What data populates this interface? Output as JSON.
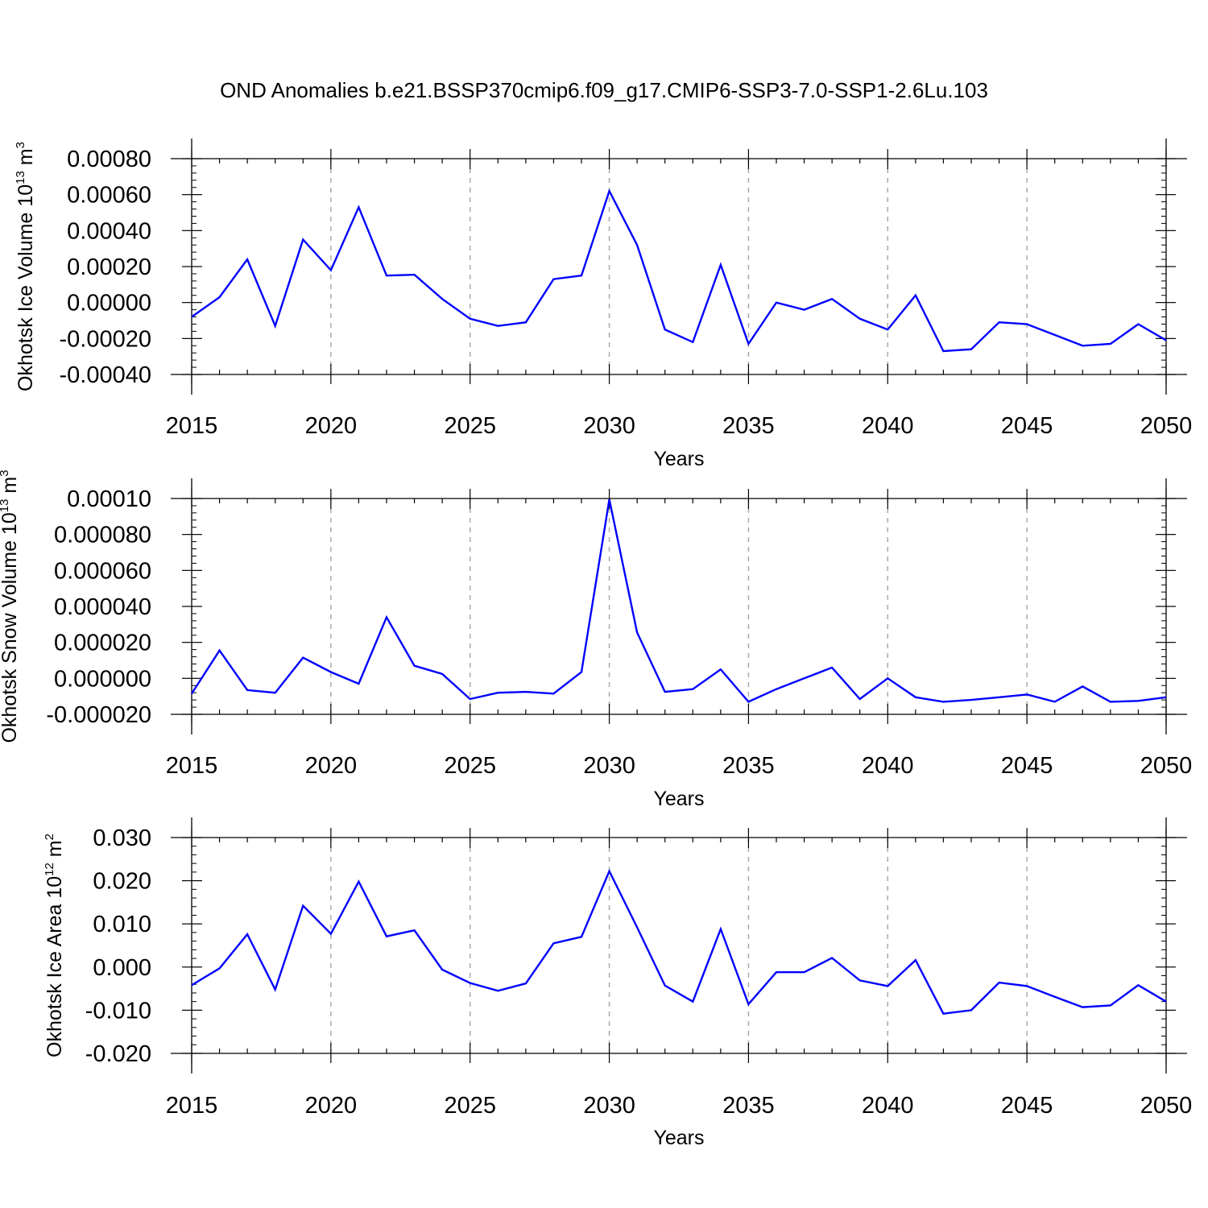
{
  "title": "OND Anomalies b.e21.BSSP370cmip6.f09_g17.CMIP6-SSP3-7.0-SSP1-2.6Lu.103",
  "colors": {
    "line": "#0000ff",
    "axis": "#000000",
    "grid": "#aaaaaa"
  },
  "chart_data": [
    {
      "type": "line",
      "xlabel": "Years",
      "ylabel_text": "Okhotsk Ice Volume 10",
      "ylabel_exp": "13",
      "ylabel_unit": " m",
      "ylabel_unit_exp": "3",
      "xlim": [
        2015,
        2050
      ],
      "ylim": [
        -0.0004,
        0.0008
      ],
      "yticks": [
        -0.0004,
        -0.0002,
        0.0,
        0.0002,
        0.0004,
        0.0006,
        0.0008
      ],
      "ytick_labels": [
        "-0.00040",
        "-0.00020",
        "0.00000",
        "0.00020",
        "0.00040",
        "0.00060",
        "0.00080"
      ],
      "xticks": [
        2015,
        2020,
        2025,
        2030,
        2035,
        2040,
        2045,
        2050
      ],
      "xtick_labels": [
        "2015",
        "2020",
        "2025",
        "2030",
        "2035",
        "2040",
        "2045",
        "2050"
      ],
      "grid": "vertical dashed at major x ticks",
      "series": [
        {
          "x": [
            2015,
            2016,
            2017,
            2018,
            2019,
            2020,
            2021,
            2022,
            2023,
            2024,
            2025,
            2026,
            2027,
            2028,
            2029,
            2030,
            2031,
            2032,
            2033,
            2034,
            2035,
            2036,
            2037,
            2038,
            2039,
            2040,
            2041,
            2042,
            2043,
            2044,
            2045,
            2046,
            2047,
            2048,
            2049,
            2050
          ],
          "values": [
            -8e-05,
            3e-05,
            0.00024,
            -0.00013,
            0.00035,
            0.00018,
            0.00053,
            0.00015,
            0.000155,
            2e-05,
            -9e-05,
            -0.00013,
            -0.00011,
            0.00013,
            0.00015,
            0.00062,
            0.00032,
            -0.00015,
            -0.00022,
            0.00021,
            -0.00023,
            0.0,
            -4e-05,
            2e-05,
            -9e-05,
            -0.00015,
            4e-05,
            -0.00027,
            -0.00026,
            -0.00011,
            -0.00012,
            -0.00018,
            -0.00024,
            -0.00023,
            -0.00012,
            -0.00021
          ]
        }
      ]
    },
    {
      "type": "line",
      "xlabel": "Years",
      "ylabel_text": "Okhotsk Snow Volume 10",
      "ylabel_exp": "13",
      "ylabel_unit": " m",
      "ylabel_unit_exp": "3",
      "xlim": [
        2015,
        2050
      ],
      "ylim": [
        -2e-05,
        0.0001
      ],
      "yticks": [
        -2e-05,
        0.0,
        2e-05,
        4e-05,
        6e-05,
        8e-05,
        0.0001
      ],
      "ytick_labels": [
        "-0.000020",
        "0.000000",
        "0.000020",
        "0.000040",
        "0.000060",
        "0.000080",
        "0.00010"
      ],
      "xticks": [
        2015,
        2020,
        2025,
        2030,
        2035,
        2040,
        2045,
        2050
      ],
      "xtick_labels": [
        "2015",
        "2020",
        "2025",
        "2030",
        "2035",
        "2040",
        "2045",
        "2050"
      ],
      "grid": "vertical dashed at major x ticks",
      "series": [
        {
          "x": [
            2015,
            2016,
            2017,
            2018,
            2019,
            2020,
            2021,
            2022,
            2023,
            2024,
            2025,
            2026,
            2027,
            2028,
            2029,
            2030,
            2031,
            2032,
            2033,
            2034,
            2035,
            2036,
            2037,
            2038,
            2039,
            2040,
            2041,
            2042,
            2043,
            2044,
            2045,
            2046,
            2047,
            2048,
            2049,
            2050
          ],
          "values": [
            -8.5e-06,
            1.55e-05,
            -6.5e-06,
            -8e-06,
            1.15e-05,
            3.5e-06,
            -3e-06,
            3.4e-05,
            7e-06,
            2.5e-06,
            -1.15e-05,
            -8e-06,
            -7.5e-06,
            -8.5e-06,
            3.5e-06,
            9.95e-05,
            2.55e-05,
            -7.5e-06,
            -6e-06,
            5e-06,
            -1.3e-05,
            -6e-06,
            0.0,
            6e-06,
            -1.15e-05,
            0.0,
            -1.05e-05,
            -1.3e-05,
            -1.2e-05,
            -1.05e-05,
            -9e-06,
            -1.3e-05,
            -4.5e-06,
            -1.3e-05,
            -1.25e-05,
            -1.05e-05
          ]
        }
      ]
    },
    {
      "type": "line",
      "xlabel": "Years",
      "ylabel_text": "Okhotsk Ice Area 10",
      "ylabel_exp": "12",
      "ylabel_unit": " m",
      "ylabel_unit_exp": "2",
      "xlim": [
        2015,
        2050
      ],
      "ylim": [
        -0.02,
        0.03
      ],
      "yticks": [
        -0.02,
        -0.01,
        0.0,
        0.01,
        0.02,
        0.03
      ],
      "ytick_labels": [
        "-0.020",
        "-0.010",
        "0.000",
        "0.010",
        "0.020",
        "0.030"
      ],
      "xticks": [
        2015,
        2020,
        2025,
        2030,
        2035,
        2040,
        2045,
        2050
      ],
      "xtick_labels": [
        "2015",
        "2020",
        "2025",
        "2030",
        "2035",
        "2040",
        "2045",
        "2050"
      ],
      "grid": "vertical dashed at major x ticks",
      "series": [
        {
          "x": [
            2015,
            2016,
            2017,
            2018,
            2019,
            2020,
            2021,
            2022,
            2023,
            2024,
            2025,
            2026,
            2027,
            2028,
            2029,
            2030,
            2031,
            2032,
            2033,
            2034,
            2035,
            2036,
            2037,
            2038,
            2039,
            2040,
            2041,
            2042,
            2043,
            2044,
            2045,
            2046,
            2047,
            2048,
            2049,
            2050
          ],
          "values": [
            -0.0042,
            -0.0003,
            0.0076,
            -0.0052,
            0.0142,
            0.0077,
            0.0198,
            0.0071,
            0.0085,
            -0.0006,
            -0.0037,
            -0.0055,
            -0.0038,
            0.0055,
            0.007,
            0.0222,
            0.0092,
            -0.0043,
            -0.008,
            0.0088,
            -0.0086,
            -0.0012,
            -0.0012,
            0.0021,
            -0.0031,
            -0.0044,
            0.0016,
            -0.0108,
            -0.01,
            -0.0036,
            -0.0044,
            -0.0069,
            -0.0093,
            -0.0089,
            -0.0042,
            -0.008
          ]
        }
      ]
    }
  ]
}
